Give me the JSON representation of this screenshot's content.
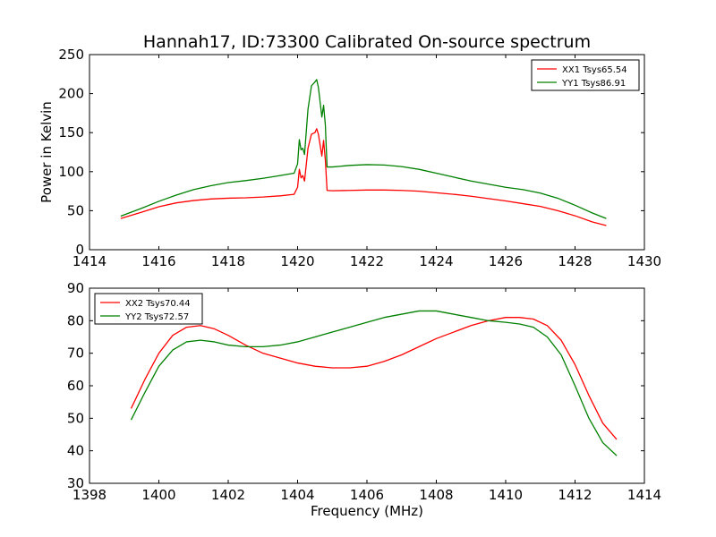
{
  "chart_data": {
    "type": "line",
    "title": "Hannah17, ID:73300 Calibrated On-source spectrum",
    "panels": [
      {
        "ylabel": "Power in Kelvin",
        "xlabel": "",
        "xlim": [
          1414,
          1430
        ],
        "ylim": [
          0,
          250
        ],
        "xticks": [
          1414,
          1416,
          1418,
          1420,
          1422,
          1424,
          1426,
          1428,
          1430
        ],
        "yticks": [
          0,
          50,
          100,
          150,
          200,
          250
        ],
        "grid": false,
        "legend_position": "top-right",
        "series": [
          {
            "name": "XX1 Tsys65.54",
            "color": "#ff0000",
            "x": [
              1414.9,
              1415.5,
              1416,
              1416.5,
              1417,
              1417.5,
              1418,
              1418.5,
              1419,
              1419.5,
              1419.9,
              1420.0,
              1420.05,
              1420.1,
              1420.15,
              1420.2,
              1420.3,
              1420.4,
              1420.5,
              1420.55,
              1420.6,
              1420.7,
              1420.75,
              1420.8,
              1420.85,
              1421,
              1421.5,
              1422,
              1422.5,
              1423,
              1423.5,
              1424,
              1424.5,
              1425,
              1425.5,
              1426,
              1426.5,
              1427,
              1427.5,
              1428,
              1428.5,
              1428.9
            ],
            "y": [
              40,
              48,
              55,
              60,
              63,
              65,
              66,
              66.5,
              67.5,
              69,
              71,
              80,
              103,
              92,
              95,
              88,
              130,
              148,
              150,
              155,
              148,
              120,
              140,
              115,
              76,
              75.5,
              76,
              76.5,
              76.5,
              76,
              75,
              73,
              71,
              68.5,
              65.5,
              62.5,
              59,
              55.5,
              50,
              43.5,
              35.5,
              31
            ]
          },
          {
            "name": "YY1 Tsys86.91",
            "color": "#008000",
            "x": [
              1414.9,
              1415.5,
              1416,
              1416.5,
              1417,
              1417.5,
              1418,
              1418.5,
              1419,
              1419.5,
              1419.9,
              1420.0,
              1420.05,
              1420.1,
              1420.15,
              1420.2,
              1420.3,
              1420.4,
              1420.5,
              1420.55,
              1420.6,
              1420.7,
              1420.75,
              1420.8,
              1420.85,
              1421,
              1421.5,
              1422,
              1422.5,
              1423,
              1423.5,
              1424,
              1424.5,
              1425,
              1425.5,
              1426,
              1426.5,
              1427,
              1427.5,
              1428,
              1428.5,
              1428.9
            ],
            "y": [
              43,
              53,
              62,
              70,
              77,
              82,
              86,
              88.5,
              91.5,
              95,
              98,
              110,
              141,
              128,
              130,
              122,
              180,
              210,
              215,
              218,
              208,
              170,
              185,
              160,
              106,
              106,
              108,
              109,
              108.5,
              106.5,
              103,
              98,
              93,
              88,
              84,
              80,
              77,
              72.5,
              66,
              57,
              47,
              40
            ]
          }
        ]
      },
      {
        "ylabel": "",
        "xlabel": "Frequency (MHz)",
        "xlim": [
          1398,
          1414
        ],
        "ylim": [
          30,
          90
        ],
        "xticks": [
          1398,
          1400,
          1402,
          1404,
          1406,
          1408,
          1410,
          1412,
          1414
        ],
        "yticks": [
          30,
          40,
          50,
          60,
          70,
          80,
          90
        ],
        "grid": false,
        "legend_position": "top-left",
        "series": [
          {
            "name": "XX2 Tsys70.44",
            "color": "#ff0000",
            "x": [
              1399.2,
              1399.6,
              1400,
              1400.4,
              1400.8,
              1401.2,
              1401.6,
              1402,
              1402.5,
              1403,
              1403.5,
              1404,
              1404.5,
              1405,
              1405.5,
              1406,
              1406.5,
              1407,
              1407.5,
              1408,
              1408.5,
              1409,
              1409.5,
              1410,
              1410.4,
              1410.8,
              1411.2,
              1411.6,
              1412,
              1412.4,
              1412.8,
              1413.2
            ],
            "y": [
              53,
              62,
              70,
              75.5,
              78,
              78.5,
              77.5,
              75.5,
              72.5,
              70,
              68.5,
              67,
              66,
              65.5,
              65.5,
              66,
              67.5,
              69.5,
              72,
              74.5,
              76.5,
              78.5,
              80,
              81,
              81,
              80.5,
              78.5,
              74,
              66.5,
              57,
              48.5,
              43.5
            ]
          },
          {
            "name": "YY2 Tsys72.57",
            "color": "#008000",
            "x": [
              1399.2,
              1399.6,
              1400,
              1400.4,
              1400.8,
              1401.2,
              1401.6,
              1402,
              1402.5,
              1403,
              1403.5,
              1404,
              1404.5,
              1405,
              1405.5,
              1406,
              1406.5,
              1407,
              1407.5,
              1408,
              1408.5,
              1409,
              1409.5,
              1410,
              1410.4,
              1410.8,
              1411.2,
              1411.6,
              1412,
              1412.4,
              1412.8,
              1413.2
            ],
            "y": [
              49.5,
              58,
              66,
              71,
              73.5,
              74,
              73.5,
              72.5,
              72,
              72,
              72.5,
              73.5,
              75,
              76.5,
              78,
              79.5,
              81,
              82,
              83,
              83,
              82,
              81,
              80,
              79.5,
              79,
              78,
              75,
              69.5,
              60,
              50,
              42.5,
              38.5
            ]
          }
        ]
      }
    ]
  }
}
